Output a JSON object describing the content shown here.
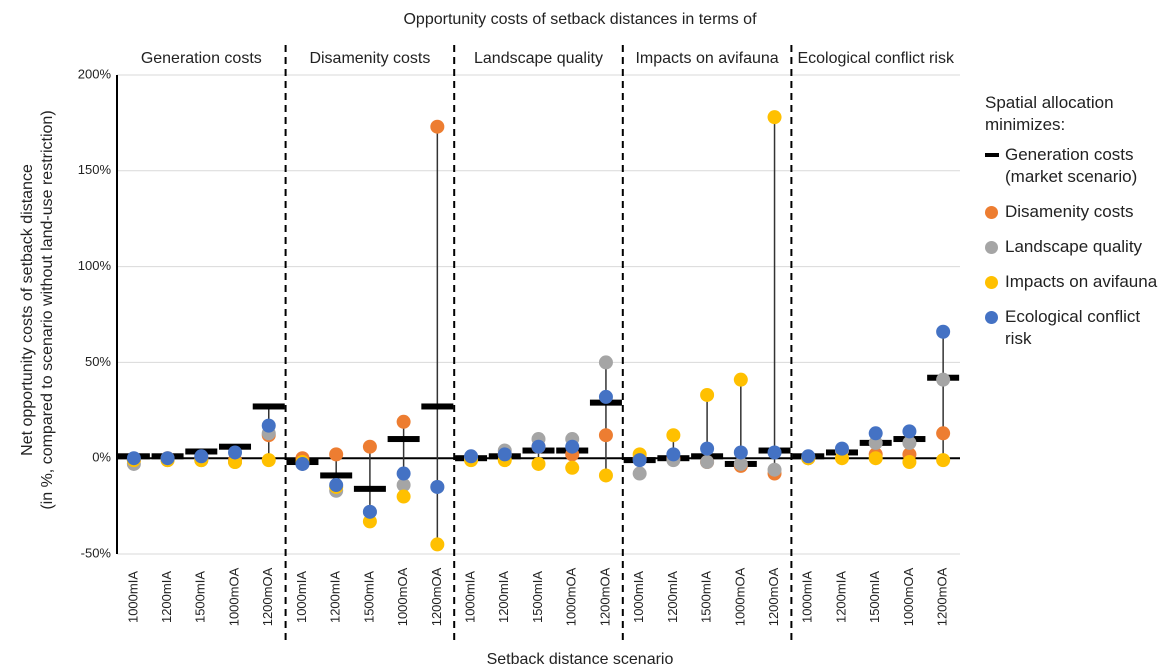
{
  "chart_data": {
    "type": "dot",
    "title": "Opportunity costs of setback distances in terms of",
    "panels": [
      "Generation costs",
      "Disamenity costs",
      "Landscape quality",
      "Impacts on avifauna",
      "Ecological conflict risk"
    ],
    "categories": [
      "1000mIA",
      "1200mIA",
      "1500mIA",
      "1000mOA",
      "1200mOA",
      "1000mIA",
      "1200mIA",
      "1500mIA",
      "1000mOA",
      "1200mOA",
      "1000mIA",
      "1200mIA",
      "1500mIA",
      "1000mOA",
      "1200mOA",
      "1000mIA",
      "1200mIA",
      "1500mIA",
      "1000mOA",
      "1200mOA",
      "1000mIA",
      "1200mIA",
      "1500mIA",
      "1000mOA",
      "1200mOA"
    ],
    "x_label": "Setback distance scenario",
    "y_label": [
      "Net opportunity costs of setback distance",
      "(in %, compared to scenario without land-use restriction)"
    ],
    "legend_title": "Spatial allocation minimizes:",
    "ylim": [
      -50,
      200
    ],
    "yticks": [
      {
        "value": -50,
        "label": "-50%"
      },
      {
        "value": 0,
        "label": "0%"
      },
      {
        "value": 50,
        "label": "50%"
      },
      {
        "value": 100,
        "label": "100%"
      },
      {
        "value": 150,
        "label": "150%"
      },
      {
        "value": 200,
        "label": "200%"
      }
    ],
    "grid": true,
    "series": [
      {
        "name": "Generation costs (market scenario)",
        "color": "#000000",
        "marker": "dash",
        "values": [
          1,
          1,
          3.5,
          6,
          27,
          -2,
          -9,
          -16,
          10,
          27,
          0,
          1,
          4,
          4,
          29,
          -1,
          0,
          1,
          -3,
          4,
          1,
          3,
          8,
          10,
          42
        ]
      },
      {
        "name": "Disamenity costs",
        "color": "#ed7d31",
        "marker": "circle",
        "values": [
          -1,
          0,
          0,
          -1,
          12,
          0,
          2,
          6,
          19,
          173,
          0,
          2,
          6,
          2,
          12,
          0,
          0,
          -2,
          -4,
          -8,
          0,
          4,
          2,
          2,
          13
        ]
      },
      {
        "name": "Landscape quality",
        "color": "#a5a5a5",
        "marker": "circle",
        "values": [
          -3,
          -1,
          -1,
          -2,
          13,
          -3,
          -17,
          -28,
          -14,
          -15,
          0,
          4,
          10,
          10,
          50,
          -8,
          -1,
          -2,
          -3,
          -6,
          0,
          4,
          8,
          8,
          41
        ]
      },
      {
        "name": "Impacts on avifauna",
        "color": "#ffc000",
        "marker": "circle",
        "values": [
          -1,
          -1,
          -1,
          -2,
          -1,
          -2,
          -15,
          -33,
          -20,
          -45,
          -1,
          -1,
          -3,
          -5,
          -9,
          2,
          12,
          33,
          41,
          178,
          0,
          0,
          0,
          -2,
          -1
        ]
      },
      {
        "name": "Ecological conflict risk",
        "color": "#4472c4",
        "marker": "circle",
        "values": [
          0,
          0,
          1,
          3,
          17,
          -3,
          -14,
          -28,
          -8,
          -15,
          1,
          2,
          6,
          6,
          32,
          -1,
          2,
          5,
          3,
          3,
          1,
          5,
          13,
          14,
          66
        ]
      }
    ]
  }
}
